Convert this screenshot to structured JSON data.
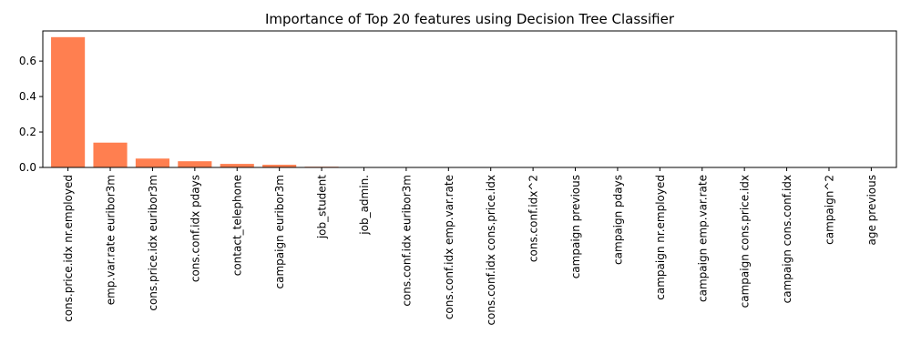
{
  "chart_data": {
    "type": "bar",
    "title": "Importance of Top 20 features using Decision Tree Classifier",
    "xlabel": "",
    "ylabel": "",
    "categories": [
      "cons.price.idx nr.employed",
      "emp.var.rate euribor3m",
      "cons.price.idx euribor3m",
      "cons.conf.idx pdays",
      "contact_telephone",
      "campaign euribor3m",
      "job_student",
      "job_admin.",
      "cons.conf.idx euribor3m",
      "cons.conf.idx emp.var.rate",
      "cons.conf.idx cons.price.idx",
      "cons.conf.idx^2",
      "campaign previous",
      "campaign pdays",
      "campaign nr.employed",
      "campaign emp.var.rate",
      "campaign cons.price.idx",
      "campaign cons.conf.idx",
      "campaign^2",
      "age previous"
    ],
    "values": [
      0.735,
      0.14,
      0.05,
      0.035,
      0.02,
      0.015,
      0.004,
      0.001,
      0.0005,
      0.0005,
      0.0005,
      0.0005,
      0.0005,
      0.0005,
      0.0005,
      0.0005,
      0.0005,
      0.0005,
      0.0005,
      0.0005
    ],
    "ylim": [
      0,
      0.77
    ],
    "yticks": [
      0.0,
      0.2,
      0.4,
      0.6
    ],
    "ytick_labels": [
      "0.0",
      "0.2",
      "0.4",
      "0.6"
    ],
    "bar_color": "#ff7f50",
    "grid": false,
    "legend": "none"
  }
}
